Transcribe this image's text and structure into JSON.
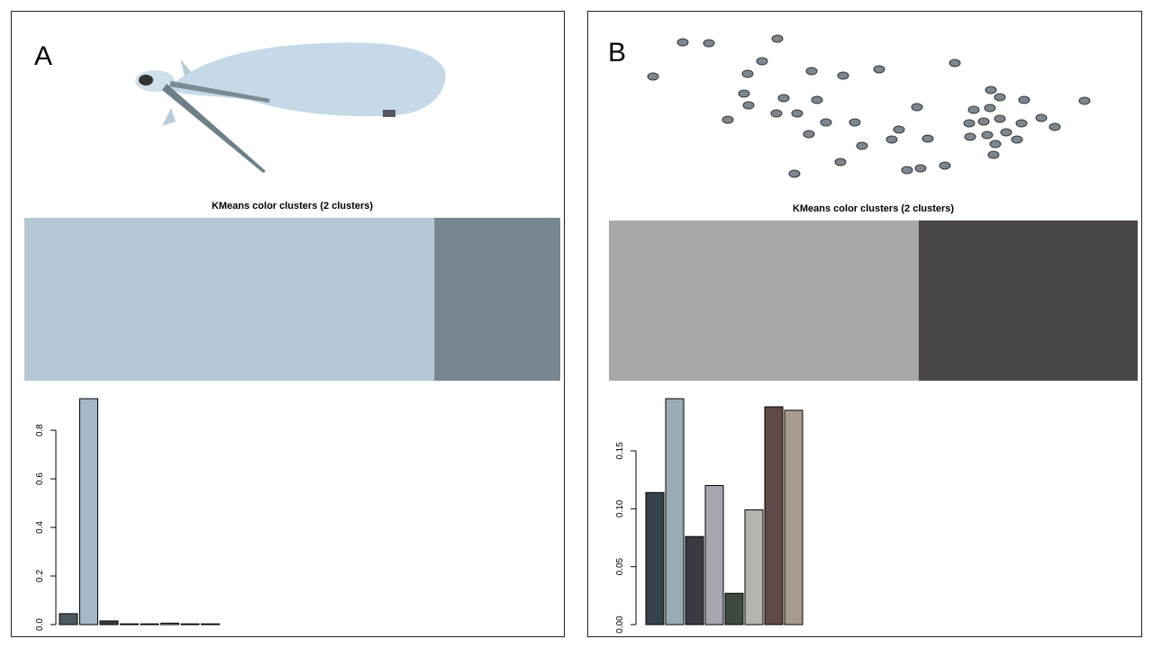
{
  "panels": [
    {
      "label": "A"
    },
    {
      "label": "B"
    }
  ],
  "chart_data": [
    {
      "type": "strip",
      "title": "KMeans color clusters (2 clusters)",
      "values": [
        0.765,
        0.235
      ],
      "colors": [
        "#b3c8d4",
        "#788690"
      ]
    },
    {
      "type": "bar",
      "values": [
        0.045,
        0.93,
        0.015,
        0.003,
        0.003,
        0.006,
        0.003,
        0.003
      ],
      "colors": [
        "#4e5a60",
        "#a5b8c6",
        "#3a3f42",
        "#4a4f52",
        "#5a5f62",
        "#a0a4a6",
        "#6a6f72",
        "#7a7f82"
      ],
      "ylim": [
        0,
        0.93
      ],
      "yticks": [
        {
          "value": 0,
          "label": "0.0"
        },
        0.2,
        0.4,
        0.6,
        0.8
      ]
    },
    {
      "type": "strip",
      "title": "KMeans color clusters (2 clusters)",
      "values": [
        0.586,
        0.414
      ],
      "colors": [
        "#a7a8aa",
        "#4a4646"
      ]
    },
    {
      "type": "bar",
      "values": [
        0.114,
        0.195,
        0.076,
        0.12,
        0.027,
        0.099,
        0.188,
        0.185
      ],
      "colors": [
        "#37434a",
        "#9aabb3",
        "#3a3a42",
        "#a8a6b0",
        "#3e4a40",
        "#b3b6ae",
        "#5e4a46",
        "#a89a90"
      ],
      "ylim": [
        0,
        0.195
      ],
      "yticks": [
        {
          "value": 0,
          "label": "0.00"
        },
        {
          "value": 0.05,
          "label": "0.05"
        },
        {
          "value": 0.1,
          "label": "0.10"
        },
        {
          "value": 0.15,
          "label": "0.15"
        }
      ]
    }
  ]
}
